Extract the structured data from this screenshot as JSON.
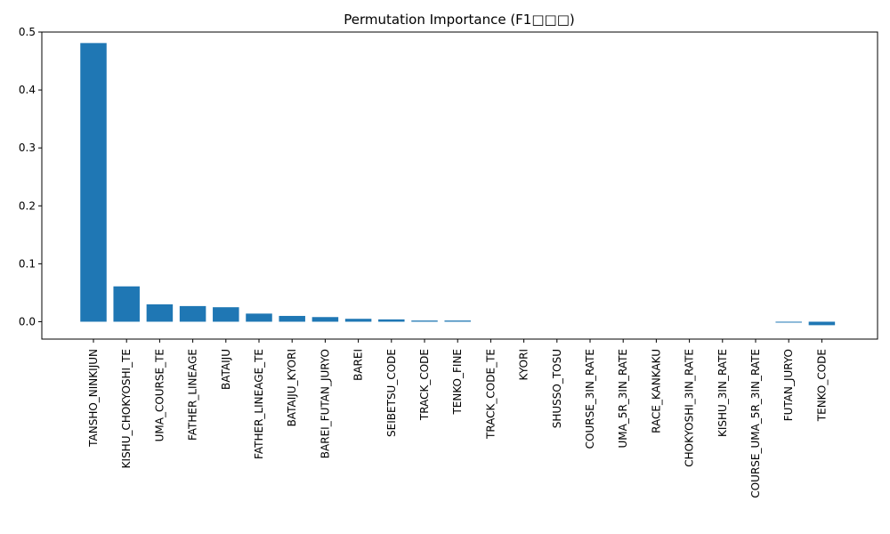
{
  "chart_data": {
    "type": "bar",
    "title": "Permutation Importance (F1□□□)",
    "xlabel": "",
    "ylabel": "",
    "ylim": [
      -0.03,
      0.5
    ],
    "yticks": [
      "0.0",
      "0.1",
      "0.2",
      "0.3",
      "0.4",
      "0.5"
    ],
    "grid": false,
    "bar_color": "#1f77b4",
    "categories": [
      "TANSHO_NINKIJUN",
      "KISHU_CHOKYOSHI_TE",
      "UMA_COURSE_TE",
      "FATHER_LINEAGE",
      "BATAIJU",
      "FATHER_LINEAGE_TE",
      "BATAIJU_KYORI",
      "BAREI_FUTAN_JURYO",
      "BAREI",
      "SEIBETSU_CODE",
      "TRACK_CODE",
      "TENKO_FINE",
      "TRACK_CODE_TE",
      "KYORI",
      "SHUSSO_TOSU",
      "COURSE_3IN_RATE",
      "UMA_5R_3IN_RATE",
      "RACE_KANKAKU",
      "CHOKYOSHI_3IN_RATE",
      "KISHU_3IN_RATE",
      "COURSE_UMA_5R_3IN_RATE",
      "FUTAN_JURYO",
      "TENKO_CODE"
    ],
    "values": [
      0.481,
      0.061,
      0.03,
      0.027,
      0.025,
      0.014,
      0.01,
      0.008,
      0.005,
      0.004,
      0.002,
      0.002,
      0.0,
      0.0,
      0.0,
      0.0,
      0.0,
      0.0,
      0.0,
      0.0,
      0.0,
      -0.001,
      -0.006
    ]
  }
}
